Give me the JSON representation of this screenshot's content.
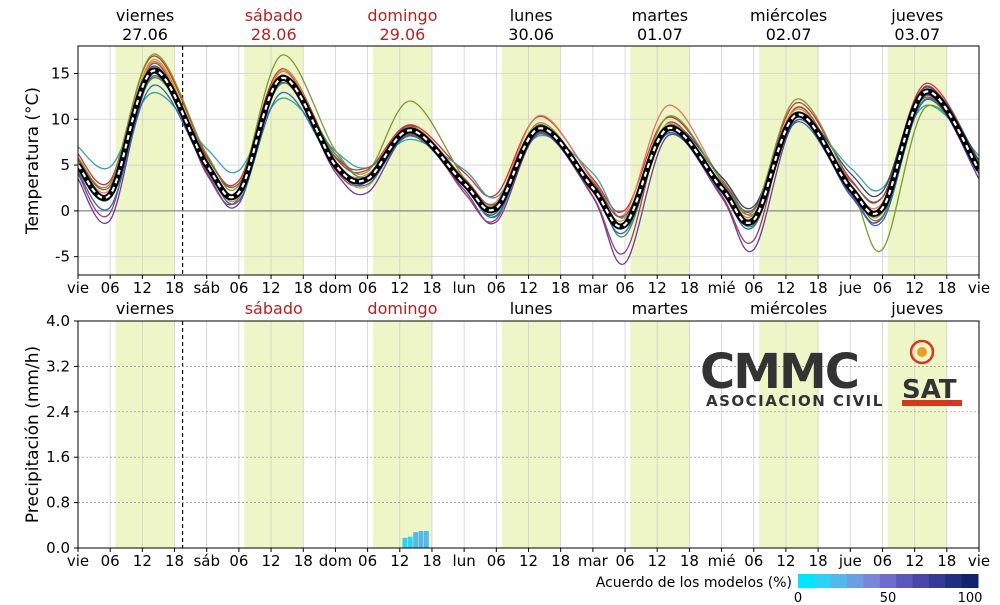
{
  "chart_data": [
    {
      "type": "line",
      "panel": "temperature",
      "ylabel": "Temperatura (°C)",
      "ylim": [
        -7,
        18
      ],
      "yticks": [
        -5,
        0,
        5,
        10,
        15
      ],
      "x_unit": "hours since Friday 27.06 00:00",
      "xlim": [
        0,
        168
      ],
      "grid": true,
      "days": [
        {
          "name": "viernes",
          "date": "27.06",
          "weekend": false
        },
        {
          "name": "sábado",
          "date": "28.06",
          "weekend": true
        },
        {
          "name": "domingo",
          "date": "29.06",
          "weekend": true
        },
        {
          "name": "lunes",
          "date": "30.06",
          "weekend": false
        },
        {
          "name": "martes",
          "date": "01.07",
          "weekend": false
        },
        {
          "name": "miércoles",
          "date": "02.07",
          "weekend": false
        },
        {
          "name": "jueves",
          "date": "03.07",
          "weekend": false
        }
      ],
      "x_tick_labels": [
        "vie",
        "06",
        "12",
        "18",
        "sáb",
        "06",
        "12",
        "18",
        "dom",
        "06",
        "12",
        "18",
        "lun",
        "06",
        "12",
        "18",
        "mar",
        "06",
        "12",
        "18",
        "mié",
        "06",
        "12",
        "18",
        "jue",
        "06",
        "12",
        "18",
        "vie"
      ],
      "daylight_hours": [
        7,
        18
      ],
      "current_time_hour": 19.5,
      "ensemble_mean": {
        "name": "mean",
        "x": [
          0,
          6,
          14,
          24,
          30,
          38,
          48,
          54,
          62,
          72,
          78,
          86,
          96,
          102,
          110,
          120,
          126,
          134,
          144,
          150,
          158,
          168
        ],
        "y": [
          5,
          1.8,
          15.3,
          5,
          2,
          14.5,
          5,
          3.5,
          8.8,
          3,
          0.3,
          9,
          2.5,
          -1.5,
          9,
          2.5,
          -1,
          10.5,
          2.5,
          0.3,
          13,
          4.5
        ]
      },
      "members": [
        {
          "color": "#cc3333",
          "offsets": [
            1.2,
            1.5,
            1.6,
            1.0,
            1.3,
            1.0,
            0.8,
            1.0,
            0.6,
            1.2,
            1.5,
            1.3,
            1.0,
            1.6,
            1.2,
            0.9,
            1.2,
            1.3,
            1.0,
            1.2,
            0.9,
            0.8
          ]
        },
        {
          "color": "#e07a5a",
          "offsets": [
            0.5,
            0.6,
            1.0,
            0.4,
            0.2,
            0.7,
            0.3,
            0.5,
            0.4,
            0.6,
            0.7,
            1.4,
            0.8,
            1.2,
            2.5,
            0.8,
            0.6,
            0.8,
            0.4,
            0.6,
            0.5,
            0.3
          ]
        },
        {
          "color": "#3aa0a8",
          "offsets": [
            2.0,
            3.0,
            -2.4,
            1.8,
            2.4,
            -2.2,
            1.5,
            1.2,
            -1.0,
            1.5,
            1.2,
            -0.8,
            1.6,
            0.8,
            -0.6,
            1.2,
            0.7,
            -0.6,
            2.2,
            2.2,
            -1.5,
            1.5
          ]
        },
        {
          "color": "#2f4a6b",
          "offsets": [
            -0.5,
            -0.2,
            0.5,
            -0.3,
            0.1,
            0.3,
            -0.2,
            0.0,
            0.2,
            -0.3,
            -0.5,
            0.3,
            0.2,
            -0.2,
            0.3,
            1.2,
            1.5,
            0.2,
            1.6,
            1.8,
            0.5,
            1.0
          ]
        },
        {
          "color": "#6a3d9a",
          "offsets": [
            -1.5,
            -2.8,
            -0.6,
            -0.8,
            -1.2,
            -0.5,
            -0.8,
            -1.5,
            -0.4,
            -0.7,
            -1.5,
            -0.6,
            -1.0,
            -4.2,
            -0.8,
            -1.0,
            -3.2,
            -0.6,
            -0.8,
            -1.0,
            -0.4,
            -1.0
          ]
        },
        {
          "color": "#9b3d6e",
          "offsets": [
            -1.0,
            -2.0,
            0.8,
            -1.0,
            -0.6,
            0.9,
            -0.5,
            -0.3,
            0.5,
            -1.0,
            -1.2,
            0.4,
            -0.9,
            -3.0,
            0.6,
            -0.8,
            -2.2,
            0.8,
            -0.4,
            -1.0,
            0.6,
            -0.5
          ]
        },
        {
          "color": "#7a9a2f",
          "offsets": [
            0.8,
            1.2,
            1.8,
            1.2,
            0.8,
            2.5,
            1.6,
            0.8,
            3.2,
            0.6,
            0.4,
            0.6,
            0.2,
            -0.2,
            1.3,
            0.8,
            1.0,
            1.7,
            0.3,
            -4.5,
            -1.7,
            0.8
          ]
        },
        {
          "color": "#c9a227",
          "offsets": [
            0.3,
            0.2,
            1.2,
            0.2,
            -0.5,
            0.9,
            0.1,
            -0.8,
            0.3,
            0.2,
            -0.3,
            0.2,
            0.3,
            0.6,
            0.5,
            0.3,
            0.4,
            0.6,
            0.1,
            -0.5,
            0.2,
            0.3
          ]
        },
        {
          "color": "#3d8f5a",
          "offsets": [
            0.0,
            -0.4,
            -0.8,
            0.5,
            -0.3,
            -0.6,
            1.2,
            0.2,
            -0.3,
            0.4,
            -0.9,
            -0.3,
            0.2,
            -1.2,
            -0.3,
            0.3,
            -0.5,
            -0.2,
            -0.1,
            -0.9,
            -0.8,
            0.4
          ]
        },
        {
          "color": "#2a6bb0",
          "offsets": [
            -0.8,
            -1.4,
            -1.6,
            -0.5,
            -0.9,
            -1.6,
            -0.3,
            -0.6,
            -0.6,
            -0.3,
            -0.8,
            -0.5,
            -0.4,
            -0.8,
            -0.5,
            -0.5,
            -0.7,
            -0.8,
            -0.6,
            -1.4,
            -0.9,
            -0.2
          ]
        },
        {
          "color": "#8c564b",
          "offsets": [
            0.6,
            0.9,
            0.3,
            0.8,
            1.0,
            -0.2,
            0.9,
            1.2,
            -0.5,
            0.5,
            0.5,
            -0.4,
            0.6,
            1.0,
            -0.2,
            0.6,
            1.2,
            -0.3,
            0.8,
            1.2,
            -0.6,
            0.5
          ]
        }
      ]
    },
    {
      "type": "bar",
      "panel": "precipitation",
      "ylabel": "Precipitación (mm/h)",
      "ylim": [
        0,
        4
      ],
      "yticks": [
        "0.0",
        "0.8",
        "1.6",
        "2.4",
        "3.2",
        "4.0"
      ],
      "x_unit": "hours since Friday 27.06 00:00",
      "bars": [
        {
          "x": 61,
          "value": 0.18,
          "agreement": 10
        },
        {
          "x": 62,
          "value": 0.2,
          "agreement": 10
        },
        {
          "x": 63,
          "value": 0.28,
          "agreement": 20
        },
        {
          "x": 64,
          "value": 0.3,
          "agreement": 20
        },
        {
          "x": 65,
          "value": 0.3,
          "agreement": 20
        }
      ],
      "legend": {
        "title": "Acuerdo de los modelos (%)",
        "min_label": "0",
        "mid_label": "50",
        "max_label": "100",
        "colors": [
          "#00e5ff",
          "#2fd1f5",
          "#55b8ec",
          "#6a9fe3",
          "#7a86d8",
          "#6f6ccb",
          "#5b58bb",
          "#4747a8",
          "#343a96",
          "#22307f",
          "#10246a"
        ]
      }
    }
  ],
  "colors": {
    "daylight": "#eef5c7",
    "weekend_label": "#b22222",
    "grid": "#d0d0d0",
    "mean_line": "#000000"
  },
  "logo": {
    "wordmark": "CMMC",
    "suffix": "SAT",
    "subtitle": "ASOCIACION CIVIL"
  }
}
